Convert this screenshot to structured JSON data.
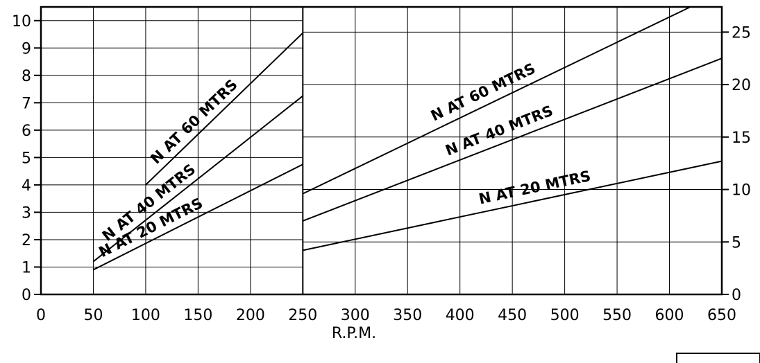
{
  "chart_data": {
    "type": "line",
    "xlabel": "R.P.M.",
    "x_ticks": [
      "0",
      "50",
      "100",
      "150",
      "200",
      "250",
      "300",
      "350",
      "400",
      "450",
      "500",
      "550",
      "600",
      "650"
    ],
    "xlim": [
      0,
      650
    ],
    "left_axis": {
      "ticks": [
        "0",
        "1",
        "2",
        "3",
        "4",
        "5",
        "6",
        "7",
        "8",
        "9",
        "10"
      ],
      "ylim": [
        0,
        10.5
      ]
    },
    "right_axis": {
      "ticks": [
        "0",
        "5",
        "10",
        "15",
        "20",
        "25"
      ],
      "ylim": [
        0,
        27.4
      ]
    },
    "panels": [
      {
        "axis": "left",
        "series": [
          {
            "name": "N AT 60 MTRS",
            "x": [
              100,
              250
            ],
            "y": [
              4.0,
              9.55
            ]
          },
          {
            "name": "N AT 40 MTRS",
            "x": [
              50,
              250
            ],
            "y": [
              1.2,
              7.25
            ]
          },
          {
            "name": "N AT 20 MTRS",
            "x": [
              50,
              250
            ],
            "y": [
              0.9,
              4.75
            ]
          }
        ]
      },
      {
        "axis": "right",
        "series": [
          {
            "name": "N AT 60 MTRS",
            "x": [
              250,
              620
            ],
            "y": [
              9.6,
              27.4
            ]
          },
          {
            "name": "N AT 40 MTRS",
            "x": [
              250,
              650
            ],
            "y": [
              7.0,
              22.5
            ]
          },
          {
            "name": "N AT 20 MTRS",
            "x": [
              250,
              650
            ],
            "y": [
              4.2,
              12.7
            ]
          }
        ]
      }
    ],
    "grid": true
  }
}
